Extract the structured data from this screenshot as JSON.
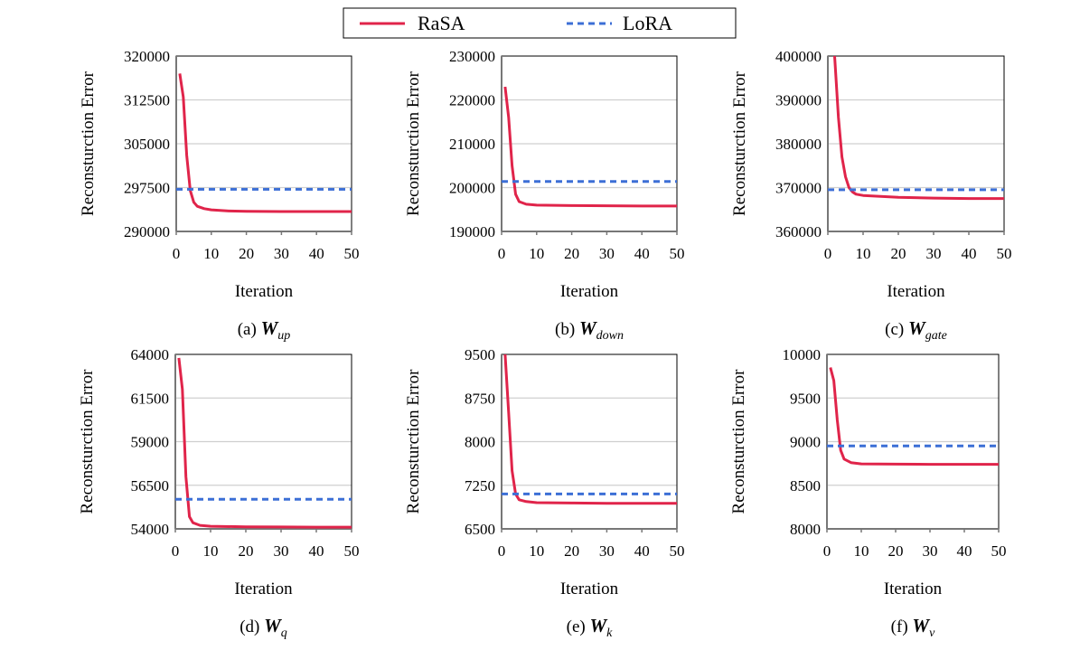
{
  "legend": {
    "placement": "top-center",
    "entries": [
      {
        "name": "RaSA",
        "color": "#e0244a",
        "style": "solid"
      },
      {
        "name": "LoRA",
        "color": "#3c6fd6",
        "style": "dashed"
      }
    ]
  },
  "chart_data": [
    {
      "type": "line",
      "caption": "(a) ",
      "symbol": "W",
      "subscript": "up",
      "xlabel": "Iteration",
      "ylabel": "Reconsturction Error",
      "xlim": [
        0,
        50
      ],
      "ylim": [
        290000,
        320000
      ],
      "xticks": [
        0,
        10,
        20,
        30,
        40,
        50
      ],
      "yticks": [
        "290000",
        "297500",
        "305000",
        "312500",
        "320000"
      ],
      "grid": "horizontal",
      "series": [
        {
          "name": "RaSA",
          "x": [
            1,
            2,
            3,
            4,
            5,
            6,
            8,
            10,
            15,
            20,
            30,
            40,
            50
          ],
          "y": [
            317000,
            313000,
            303000,
            297000,
            295000,
            294300,
            293900,
            293700,
            293500,
            293450,
            293400,
            293400,
            293400
          ]
        },
        {
          "name": "LoRA",
          "x": [
            0,
            50
          ],
          "y": [
            297200,
            297200
          ]
        }
      ]
    },
    {
      "type": "line",
      "caption": "(b) ",
      "symbol": "W",
      "subscript": "down",
      "xlabel": "Iteration",
      "ylabel": "Reconsturction Error",
      "xlim": [
        0,
        50
      ],
      "ylim": [
        190000,
        230000
      ],
      "xticks": [
        0,
        10,
        20,
        30,
        40,
        50
      ],
      "yticks": [
        "190000",
        "200000",
        "210000",
        "220000",
        "230000"
      ],
      "grid": "horizontal",
      "series": [
        {
          "name": "RaSA",
          "x": [
            1,
            2,
            3,
            4,
            5,
            7,
            10,
            20,
            30,
            40,
            50
          ],
          "y": [
            223000,
            216000,
            205000,
            198500,
            196800,
            196200,
            196000,
            195900,
            195850,
            195800,
            195800
          ]
        },
        {
          "name": "LoRA",
          "x": [
            0,
            50
          ],
          "y": [
            201400,
            201400
          ]
        }
      ]
    },
    {
      "type": "line",
      "caption": "(c) ",
      "symbol": "W",
      "subscript": "gate",
      "xlabel": "Iteration",
      "ylabel": "Reconsturction Error",
      "xlim": [
        0,
        50
      ],
      "ylim": [
        360000,
        400000
      ],
      "xticks": [
        0,
        10,
        20,
        30,
        40,
        50
      ],
      "yticks": [
        "360000",
        "370000",
        "380000",
        "390000",
        "400000"
      ],
      "grid": "horizontal",
      "series": [
        {
          "name": "RaSA",
          "x": [
            1,
            2,
            3,
            4,
            5,
            6,
            7,
            8,
            10,
            20,
            30,
            40,
            50
          ],
          "y": [
            410000,
            399000,
            386000,
            377000,
            372500,
            370000,
            369000,
            368500,
            368200,
            367800,
            367600,
            367500,
            367500
          ]
        },
        {
          "name": "LoRA",
          "x": [
            0,
            50
          ],
          "y": [
            369500,
            369500
          ]
        }
      ]
    },
    {
      "type": "line",
      "caption": "(d) ",
      "symbol": "W",
      "subscript": "q",
      "xlabel": "Iteration",
      "ylabel": "Reconsturction Error",
      "xlim": [
        0,
        50
      ],
      "ylim": [
        54000,
        64000
      ],
      "xticks": [
        0,
        10,
        20,
        30,
        40,
        50
      ],
      "yticks": [
        "54000",
        "56500",
        "59000",
        "61500",
        "64000"
      ],
      "grid": "horizontal",
      "series": [
        {
          "name": "RaSA",
          "x": [
            1,
            2,
            3,
            4,
            5,
            7,
            10,
            20,
            30,
            40,
            50
          ],
          "y": [
            63800,
            62000,
            57000,
            54700,
            54350,
            54200,
            54150,
            54120,
            54110,
            54100,
            54100
          ]
        },
        {
          "name": "LoRA",
          "x": [
            0,
            50
          ],
          "y": [
            55700,
            55700
          ]
        }
      ]
    },
    {
      "type": "line",
      "caption": "(e) ",
      "symbol": "W",
      "subscript": "k",
      "xlabel": "Iteration",
      "ylabel": "Reconsturction Error",
      "xlim": [
        0,
        50
      ],
      "ylim": [
        6500,
        9500
      ],
      "xticks": [
        0,
        10,
        20,
        30,
        40,
        50
      ],
      "yticks": [
        "6500",
        "7250",
        "8000",
        "8750",
        "9500"
      ],
      "grid": "horizontal",
      "series": [
        {
          "name": "RaSA",
          "x": [
            1,
            2,
            3,
            4,
            5,
            7,
            10,
            20,
            30,
            40,
            50
          ],
          "y": [
            9500,
            8500,
            7500,
            7100,
            7000,
            6970,
            6950,
            6945,
            6940,
            6940,
            6940
          ]
        },
        {
          "name": "LoRA",
          "x": [
            0,
            50
          ],
          "y": [
            7100,
            7100
          ]
        }
      ]
    },
    {
      "type": "line",
      "caption": "(f) ",
      "symbol": "W",
      "subscript": "v",
      "xlabel": "Iteration",
      "ylabel": "Reconsturction Error",
      "xlim": [
        0,
        50
      ],
      "ylim": [
        8000,
        10000
      ],
      "xticks": [
        0,
        10,
        20,
        30,
        40,
        50
      ],
      "yticks": [
        "8000",
        "8500",
        "9000",
        "9500",
        "10000"
      ],
      "grid": "horizontal",
      "series": [
        {
          "name": "RaSA",
          "x": [
            1,
            2,
            3,
            4,
            5,
            7,
            10,
            20,
            30,
            40,
            50
          ],
          "y": [
            9850,
            9700,
            9250,
            8900,
            8800,
            8760,
            8745,
            8742,
            8740,
            8740,
            8740
          ]
        },
        {
          "name": "LoRA",
          "x": [
            0,
            50
          ],
          "y": [
            8950,
            8950
          ]
        }
      ]
    }
  ]
}
